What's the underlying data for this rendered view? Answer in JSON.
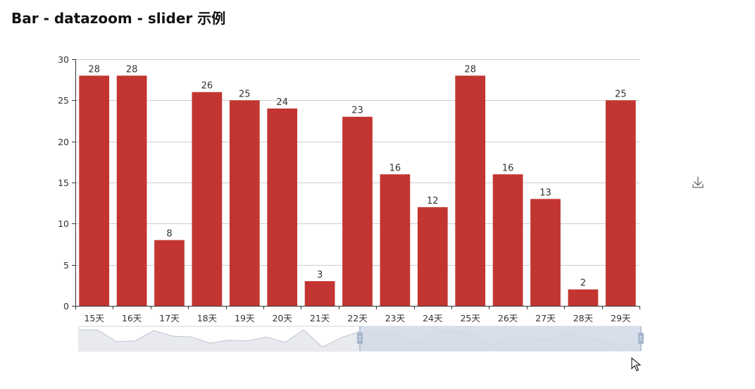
{
  "page": {
    "title": "Bar - datazoom - slider 示例"
  },
  "toolbox": {
    "save_icon": "download-icon"
  },
  "colors": {
    "bar": "#c23531",
    "axis": "#333333",
    "grid": "#cccccc",
    "slider_background": "#e8eaef",
    "slider_selected": "#d2d9e6",
    "slider_handle": "#a7b7cc",
    "slider_shadow": "#bfc4cc"
  },
  "chart_data": {
    "type": "bar",
    "title": "",
    "xlabel": "",
    "ylabel": "",
    "categories": [
      "15天",
      "16天",
      "17天",
      "18天",
      "19天",
      "20天",
      "21天",
      "22天",
      "23天",
      "24天",
      "25天",
      "26天",
      "27天",
      "28天",
      "29天"
    ],
    "values": [
      28,
      28,
      8,
      26,
      25,
      24,
      3,
      23,
      16,
      12,
      28,
      16,
      13,
      2,
      25
    ],
    "ylim": [
      0,
      30
    ],
    "yticks": [
      0,
      5,
      10,
      15,
      20,
      25,
      30
    ],
    "grid": true,
    "legend": "none",
    "data_labels": "top",
    "datazoom": {
      "type": "slider",
      "range_start_percent": 50,
      "range_end_percent": 100,
      "overview_values": [
        25,
        25,
        10,
        11,
        24,
        17,
        16,
        8,
        12,
        11,
        16,
        9,
        25,
        3,
        15,
        23,
        22,
        22,
        8,
        24,
        23,
        22,
        5,
        19,
        14,
        12,
        22,
        14,
        13,
        2,
        19
      ]
    }
  }
}
